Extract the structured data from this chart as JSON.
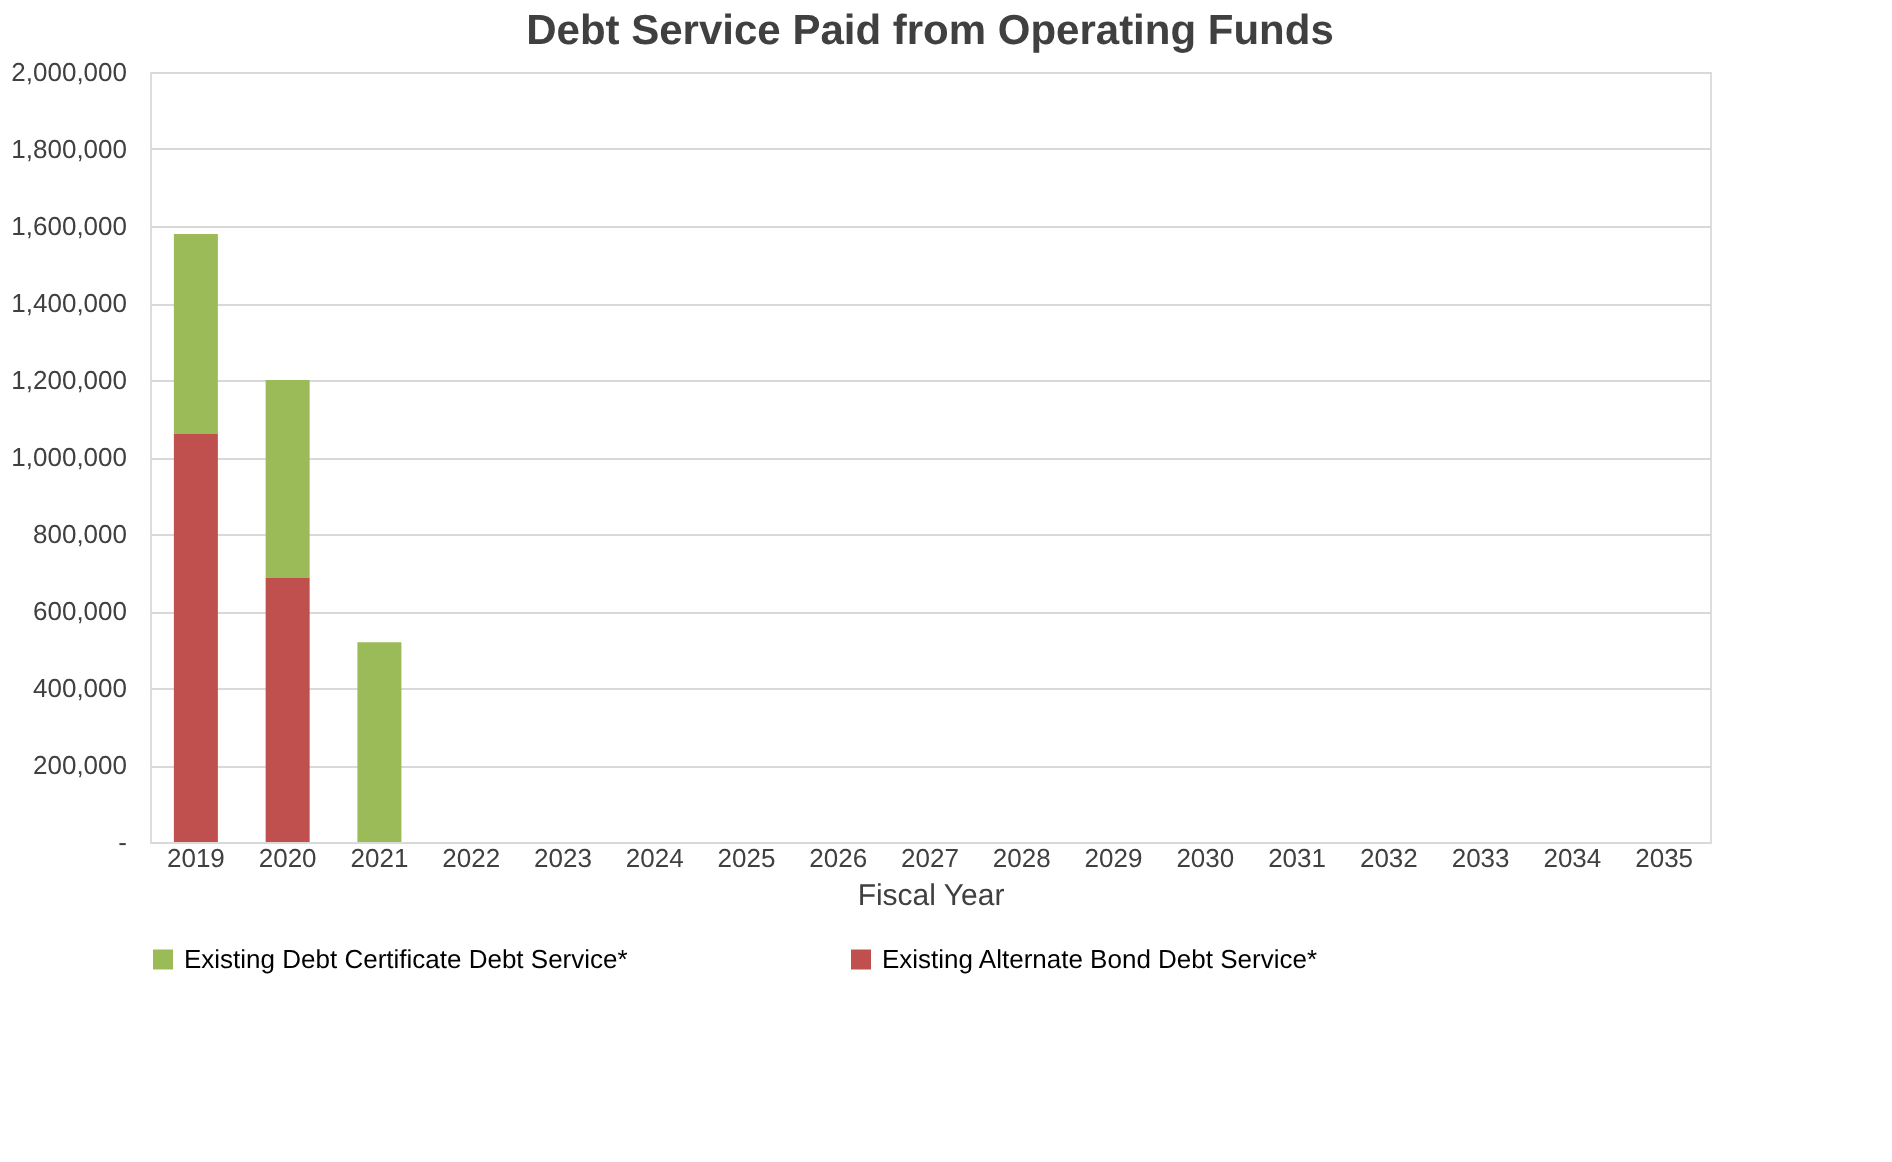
{
  "chart_data": {
    "type": "bar",
    "title": "Debt Service Paid from Operating Funds",
    "xlabel": "Fiscal Year",
    "categories": [
      "2019",
      "2020",
      "2021",
      "2022",
      "2023",
      "2024",
      "2025",
      "2026",
      "2027",
      "2028",
      "2029",
      "2030",
      "2031",
      "2032",
      "2033",
      "2034",
      "2035"
    ],
    "stacked": true,
    "series": [
      {
        "name": "Existing Alternate Bond Debt Service*",
        "color": "#c0504d",
        "values": [
          1060000,
          686000,
          null,
          null,
          null,
          null,
          null,
          null,
          null,
          null,
          null,
          null,
          null,
          null,
          null,
          null,
          null
        ]
      },
      {
        "name": "Existing Debt Certificate Debt Service*",
        "color": "#9bbb59",
        "values": [
          519000,
          514000,
          519000,
          null,
          null,
          null,
          null,
          null,
          null,
          null,
          null,
          null,
          null,
          null,
          null,
          null,
          null
        ]
      }
    ],
    "ylim": [
      0,
      2000000
    ],
    "yticks": [
      {
        "value": 0,
        "label": "-"
      },
      {
        "value": 200000,
        "label": "200,000"
      },
      {
        "value": 400000,
        "label": "400,000"
      },
      {
        "value": 600000,
        "label": "600,000"
      },
      {
        "value": 800000,
        "label": "800,000"
      },
      {
        "value": 1000000,
        "label": "1,000,000"
      },
      {
        "value": 1200000,
        "label": "1,200,000"
      },
      {
        "value": 1400000,
        "label": "1,400,000"
      },
      {
        "value": 1600000,
        "label": "1,600,000"
      },
      {
        "value": 1800000,
        "label": "1,800,000"
      },
      {
        "value": 2000000,
        "label": "2,000,000"
      }
    ],
    "grid": "y",
    "legend": "bottom"
  }
}
